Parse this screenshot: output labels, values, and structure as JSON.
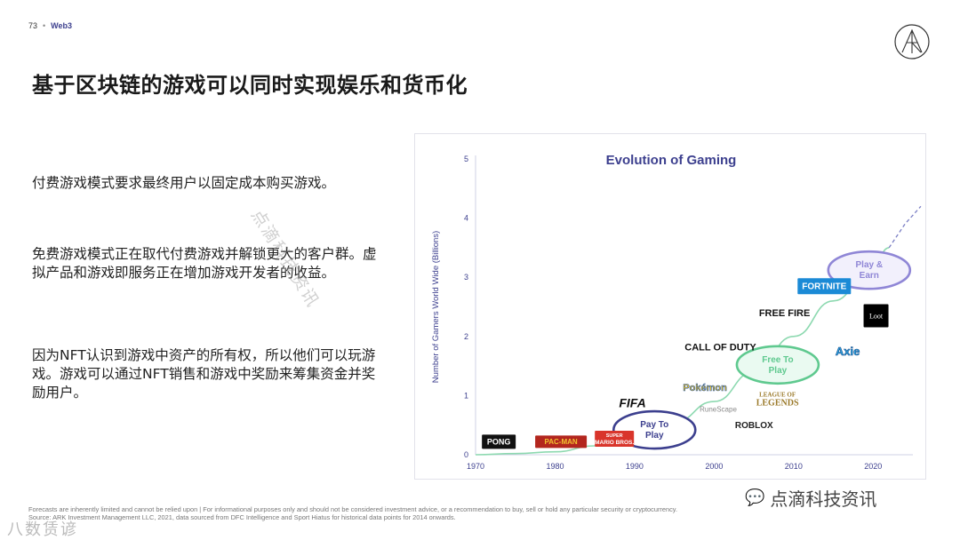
{
  "header": {
    "page_number": "73",
    "section": "Web3"
  },
  "title": "基于区块链的游戏可以同时实现娱乐和货币化",
  "paragraphs": [
    "付费游戏模式要求最终用户以固定成本购买游戏。",
    "免费游戏模式正在取代付费游戏并解锁更大的客户群。虚拟产品和游戏即服务正在增加游戏开发者的收益。",
    "因为NFT认识到游戏中资产的所有权，所以他们可以玩游戏。游戏可以通过NFT销售和游戏中奖励来筹集资金并奖励用户。"
  ],
  "chart_data": {
    "type": "line",
    "title": "Evolution of Gaming",
    "ylabel": "Number of Gamers World Wide (Billions)",
    "xlabel": "",
    "x_ticks": [
      1970,
      1980,
      1990,
      2000,
      2010,
      2020
    ],
    "y_ticks": [
      0,
      1,
      2,
      3,
      4,
      5
    ],
    "xlim": [
      1970,
      2025
    ],
    "ylim": [
      0,
      5
    ],
    "grid": false,
    "series": [
      {
        "x": [
          1970,
          1975,
          1980,
          1985,
          1990,
          1995,
          2000,
          2005,
          2010,
          2015,
          2020,
          2022
        ],
        "y": [
          0.0,
          0.02,
          0.05,
          0.15,
          0.3,
          0.55,
          0.9,
          1.4,
          2.0,
          2.6,
          3.2,
          3.5
        ]
      }
    ],
    "projection": {
      "x": [
        2022,
        2024,
        2026
      ],
      "y": [
        3.5,
        3.9,
        4.2
      ]
    },
    "color": "#3c3f8e",
    "line_color": "#8dd9b0",
    "projection_color": "#7a7ec4",
    "bubbles": [
      {
        "label_lines": [
          "Pay To",
          "Play"
        ],
        "x": 1992.5,
        "y": 0.42,
        "color": "#3c3f8e",
        "fill": "#ffffff"
      },
      {
        "label_lines": [
          "Free To",
          "Play"
        ],
        "x": 2008,
        "y": 1.52,
        "color": "#5fc98f",
        "fill": "#eafaf1"
      },
      {
        "label_lines": [
          "Play &",
          "Earn"
        ],
        "x": 2019.5,
        "y": 3.12,
        "color": "#8f86d6",
        "fill": "#f2f0fc"
      }
    ],
    "games": [
      {
        "name": "PONG",
        "x": 1970.8,
        "y": 0.22,
        "style": "pong"
      },
      {
        "name": "PAC-MAN",
        "x": 1977.5,
        "y": 0.22,
        "style": "pacman"
      },
      {
        "name": "SUPER MARIO BROS.",
        "x": 1985,
        "y": 0.27,
        "style": "mario"
      },
      {
        "name": "FIFA",
        "x": 1987.5,
        "y": 0.88,
        "style": "fifa"
      },
      {
        "name": "Pokémon",
        "x": 1995.5,
        "y": 1.14,
        "style": "pokemon"
      },
      {
        "name": "RuneScape",
        "x": 1997.5,
        "y": 0.77,
        "style": "runescape"
      },
      {
        "name": "ROBLOX",
        "x": 2002,
        "y": 0.5,
        "style": "roblox"
      },
      {
        "name": "LEAGUE OF LEGENDS",
        "x": 2004.5,
        "y": 0.95,
        "style": "lol"
      },
      {
        "name": "CALL OF DUTY",
        "x": 1997,
        "y": 1.82,
        "style": "cod"
      },
      {
        "name": "FREE FIRE",
        "x": 2005.5,
        "y": 2.4,
        "style": "freefire"
      },
      {
        "name": "FORTNITE",
        "x": 2010.5,
        "y": 2.85,
        "style": "fortnite"
      },
      {
        "name": "Axie",
        "x": 2014,
        "y": 1.75,
        "style": "axie"
      },
      {
        "name": "Loot",
        "x": 2018.8,
        "y": 2.35,
        "style": "loot"
      }
    ]
  },
  "footnote": [
    "Forecasts are inherently limited and cannot be relied upon | For informational purposes only and should not be considered investment advice, or a recommendation to buy, sell or hold any particular security or cryptocurrency.",
    "Source: ARK Investment Management LLC, 2021, data sourced from DFC Intelligence and Sport Hiatus for historical data points for 2014 onwards."
  ],
  "watermarks": {
    "diagonal": "点滴科技资讯",
    "bottom_right": "点滴科技资讯",
    "bottom_left": "八数赁谚"
  }
}
